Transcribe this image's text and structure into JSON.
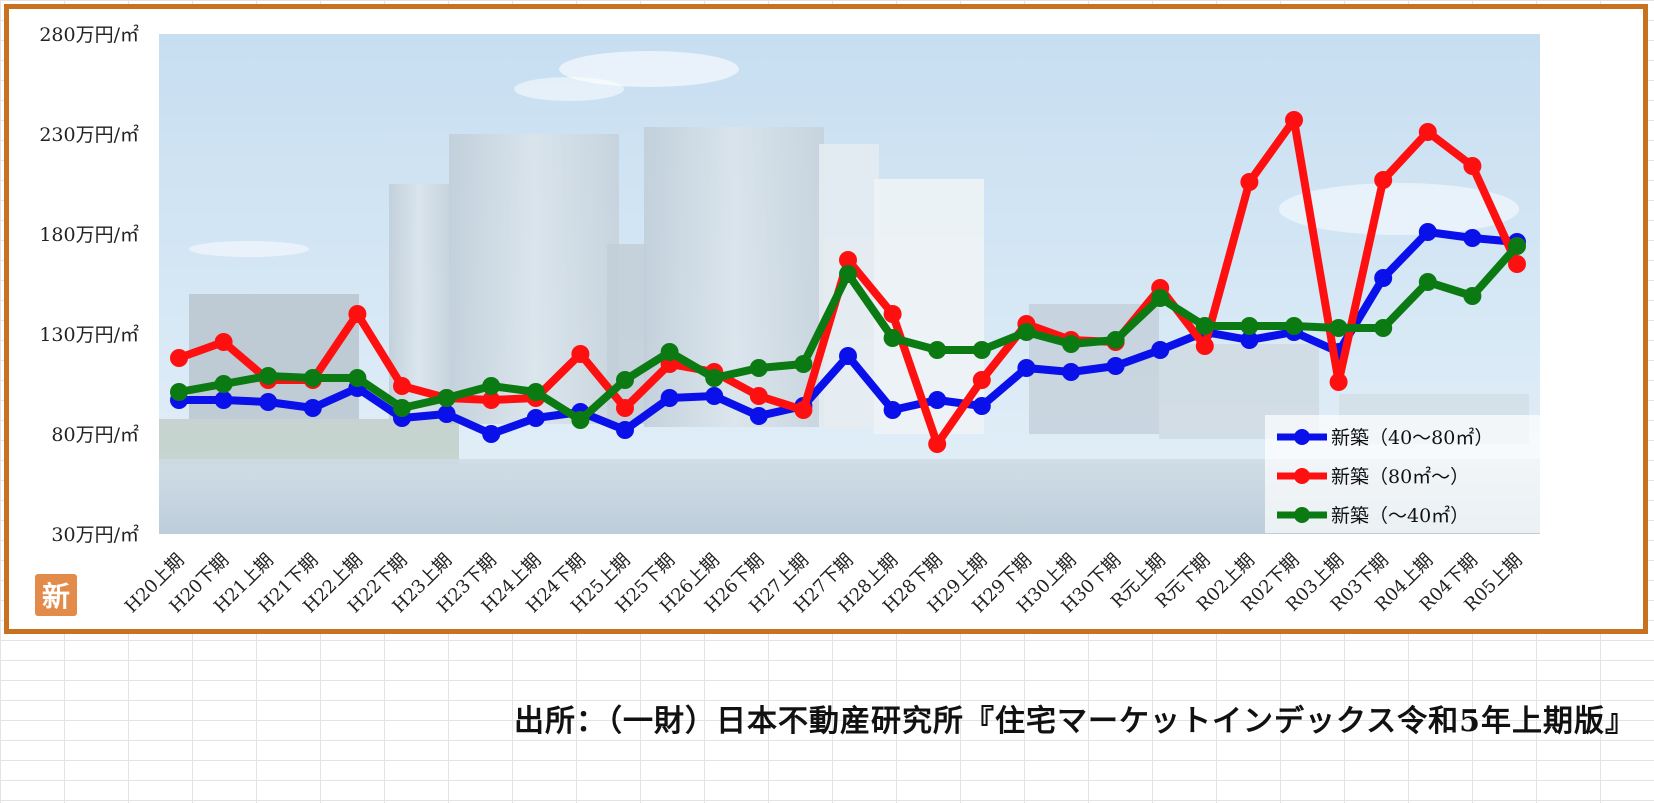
{
  "chart_data": {
    "type": "line",
    "categories": [
      "H20上期",
      "H20下期",
      "H21上期",
      "H21下期",
      "H22上期",
      "H22下期",
      "H23上期",
      "H23下期",
      "H24上期",
      "H24下期",
      "H25上期",
      "H25下期",
      "H26上期",
      "H26下期",
      "H27上期",
      "H27下期",
      "H28上期",
      "H28下期",
      "H29上期",
      "H29下期",
      "H30上期",
      "H30下期",
      "R元上期",
      "R元下期",
      "R02上期",
      "R02下期",
      "R03上期",
      "R03下期",
      "R04上期",
      "R04下期",
      "R05上期"
    ],
    "y_ticks": [
      "280万円/㎡",
      "230万円/㎡",
      "180万円/㎡",
      "130万円/㎡",
      "80万円/㎡",
      "30万円/㎡"
    ],
    "ylim": [
      30,
      280
    ],
    "series": [
      {
        "name": "新築（40～80㎡）",
        "color": "#0a10ea",
        "values": [
          97,
          97,
          96,
          93,
          103,
          88,
          90,
          80,
          88,
          91,
          82,
          98,
          99,
          89,
          94,
          119,
          92,
          97,
          94,
          113,
          111,
          114,
          122,
          131,
          127,
          131,
          121,
          158,
          181,
          178,
          176
        ]
      },
      {
        "name": "新築（80㎡～）",
        "color": "#ff1010",
        "values": [
          118,
          126,
          107,
          107,
          140,
          104,
          98,
          97,
          98,
          120,
          93,
          115,
          111,
          99,
          92,
          167,
          140,
          75,
          107,
          135,
          127,
          126,
          153,
          124,
          206,
          237,
          106,
          207,
          231,
          214,
          165
        ]
      },
      {
        "name": "新築（～40㎡）",
        "color": "#0b7a12",
        "values": [
          101,
          105,
          109,
          108,
          108,
          93,
          98,
          104,
          101,
          87,
          107,
          121,
          108,
          113,
          115,
          160,
          128,
          122,
          122,
          131,
          125,
          127,
          148,
          134,
          134,
          134,
          133,
          133,
          156,
          149,
          174
        ]
      }
    ],
    "background": {
      "sky_top": "#a9cdea",
      "sky_bottom": "#d6e8f5",
      "water": "#9fb7c9"
    }
  },
  "badge": {
    "text": "新"
  },
  "source": "出所：（一財）日本不動産研究所『住宅マーケットインデックス令和5年上期版』"
}
